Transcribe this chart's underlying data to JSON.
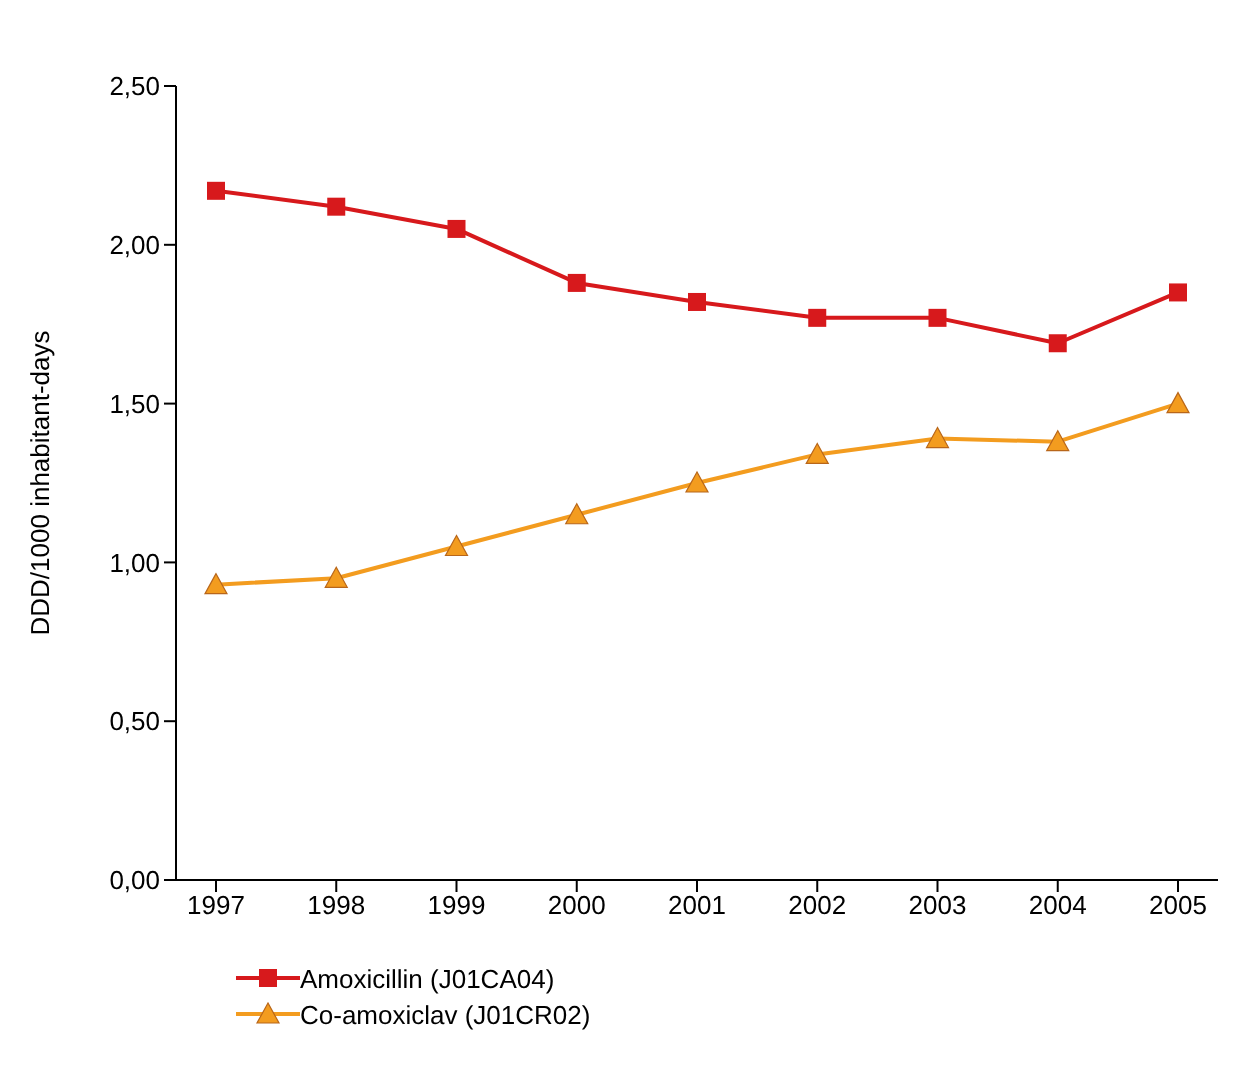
{
  "chart_data": {
    "type": "line",
    "ylabel": "DDD/1000 inhabitant-days",
    "categories": [
      "1997",
      "1998",
      "1999",
      "2000",
      "2001",
      "2002",
      "2003",
      "2004",
      "2005"
    ],
    "series": [
      {
        "name": "Amoxicillin (J01CA04)",
        "color": "#d7191c",
        "marker": "square",
        "values": [
          2.17,
          2.12,
          2.05,
          1.88,
          1.82,
          1.77,
          1.77,
          1.69,
          1.85
        ]
      },
      {
        "name": "Co-amoxiclav (J01CR02)",
        "color": "#f39c1f",
        "marker": "triangle",
        "values": [
          0.93,
          0.95,
          1.05,
          1.15,
          1.25,
          1.34,
          1.39,
          1.38,
          1.5
        ]
      }
    ],
    "ylim": [
      0,
      2.5
    ],
    "yticks": [
      {
        "value": 0,
        "label": "0,00"
      },
      {
        "value": 0.5,
        "label": "0,50"
      },
      {
        "value": 1,
        "label": "1,00"
      },
      {
        "value": 1.5,
        "label": "1,50"
      },
      {
        "value": 2,
        "label": "2,00"
      },
      {
        "value": 2.5,
        "label": "2,50"
      }
    ],
    "grid": false,
    "legend": "bottom left",
    "line_style": "solid"
  }
}
